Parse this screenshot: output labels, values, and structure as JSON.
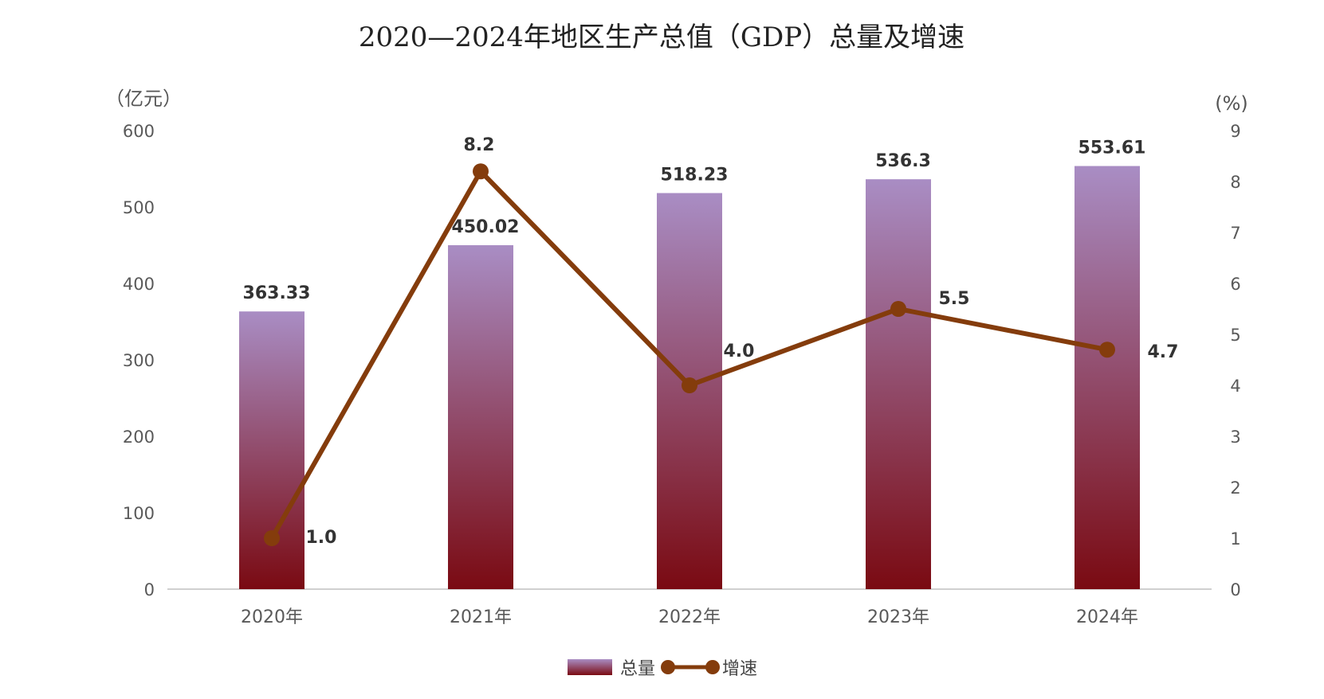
{
  "chart_data": {
    "type": "bar",
    "title": "2020—2024年地区生产总值（GDP）总量及增速",
    "categories": [
      "2020年",
      "2021年",
      "2022年",
      "2023年",
      "2024年"
    ],
    "y_left_unit": "（亿元）",
    "y_right_unit": "(%)",
    "ylim_left": [
      0,
      600
    ],
    "yticks_left": [
      "0",
      "100",
      "200",
      "300",
      "400",
      "500",
      "600"
    ],
    "ylim_right": [
      0,
      9
    ],
    "yticks_right": [
      "0",
      "1",
      "2",
      "3",
      "4",
      "5",
      "6",
      "7",
      "8",
      "9"
    ],
    "grid": false,
    "legend_position": "bottom",
    "series": [
      {
        "name": "总量",
        "type": "bar",
        "axis": "left",
        "values": [
          363.33,
          450.02,
          518.23,
          536.3,
          553.61
        ],
        "labels": [
          "363.33",
          "450.02",
          "518.23",
          "536.3",
          "553.61"
        ],
        "color_top": "#a98dc4",
        "color_bottom": "#7a0a12"
      },
      {
        "name": "增速",
        "type": "line",
        "axis": "right",
        "values": [
          1.0,
          8.2,
          4.0,
          5.5,
          4.7
        ],
        "labels": [
          "1.0",
          "8.2",
          "4.0",
          "5.5",
          "4.7"
        ],
        "color": "#843c0c"
      }
    ]
  }
}
